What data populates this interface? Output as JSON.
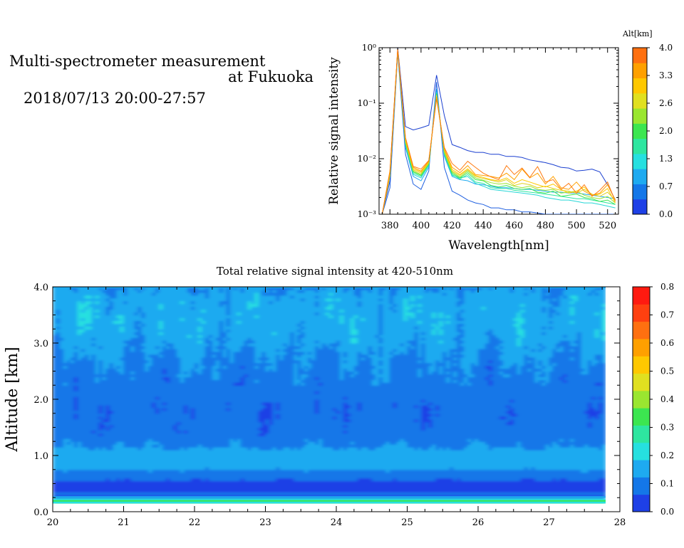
{
  "header": {
    "title_line1": "Multi-spectrometer measurement",
    "title_line2": "at Fukuoka",
    "date_range": "2018/07/13 20:00-27:57"
  },
  "chart_data": [
    {
      "type": "line",
      "xlabel": "Wavelength[nm]",
      "ylabel": "Relative signal intensity",
      "xlim": [
        373,
        527
      ],
      "ylim": [
        0.001,
        1
      ],
      "yscale": "log",
      "x_ticks": [
        "380",
        "400",
        "420",
        "440",
        "460",
        "480",
        "500",
        "520"
      ],
      "y_ticks": [
        "10⁻³",
        "10⁻²",
        "10⁻¹",
        "10⁰"
      ],
      "x": [
        375,
        380,
        385,
        390,
        395,
        400,
        405,
        410,
        415,
        420,
        425,
        430,
        435,
        440,
        445,
        450,
        455,
        460,
        465,
        470,
        475,
        480,
        485,
        490,
        495,
        500,
        505,
        510,
        515,
        520,
        525
      ],
      "colorbar": {
        "label": "Alt[km]",
        "ticks": [
          "0.0",
          "0.7",
          "1.3",
          "2.0",
          "2.6",
          "3.3",
          "4.0"
        ],
        "colors": [
          "#1e40e6",
          "#1477e8",
          "#1eaaf0",
          "#26e0e0",
          "#2ee6a0",
          "#3ce650",
          "#9ae630",
          "#e0e020",
          "#ffc800",
          "#ffa000",
          "#ff7010"
        ]
      },
      "series": [
        {
          "color": "#1a3fd0",
          "values": [
            0.001,
            0.004,
            1.0,
            0.038,
            0.033,
            0.036,
            0.04,
            0.32,
            0.06,
            0.018,
            0.016,
            0.014,
            0.013,
            0.013,
            0.012,
            0.012,
            0.011,
            0.011,
            0.0105,
            0.0095,
            0.009,
            0.0085,
            0.0078,
            0.007,
            0.0068,
            0.006,
            0.0062,
            0.0065,
            0.0058,
            0.0034,
            0.0018
          ]
        },
        {
          "color": "#1e5fe0",
          "values": [
            0.001,
            0.003,
            0.8,
            0.012,
            0.0035,
            0.0028,
            0.006,
            0.24,
            0.007,
            0.0026,
            0.0022,
            0.0018,
            0.0016,
            0.0015,
            0.0013,
            0.0013,
            0.0012,
            0.0012,
            0.0011,
            0.0011,
            0.00105,
            0.001,
            0.001,
            0.001,
            0.001,
            0.001,
            0.001,
            0.001,
            0.001,
            0.001,
            0.001
          ]
        },
        {
          "color": "#1eaaf0",
          "values": [
            0.001,
            0.005,
            0.85,
            0.016,
            0.0048,
            0.004,
            0.007,
            0.18,
            0.011,
            0.0048,
            0.0042,
            0.004,
            0.0035,
            0.0034,
            0.0032,
            0.003,
            0.003,
            0.0029,
            0.0028,
            0.0028,
            0.0027,
            0.0026,
            0.0025,
            0.0025,
            0.0024,
            0.0024,
            0.0023,
            0.0022,
            0.0021,
            0.002,
            0.0019
          ]
        },
        {
          "color": "#26d6d6",
          "values": [
            0.001,
            0.005,
            0.88,
            0.018,
            0.0052,
            0.0045,
            0.0075,
            0.16,
            0.012,
            0.005,
            0.0045,
            0.0048,
            0.0036,
            0.0032,
            0.0028,
            0.0027,
            0.0026,
            0.0025,
            0.0024,
            0.0023,
            0.0022,
            0.002,
            0.0019,
            0.0018,
            0.0018,
            0.0017,
            0.0016,
            0.0016,
            0.0015,
            0.0014,
            0.0013
          ]
        },
        {
          "color": "#2ee6a0",
          "values": [
            0.001,
            0.005,
            0.9,
            0.018,
            0.0055,
            0.0048,
            0.0078,
            0.15,
            0.012,
            0.0052,
            0.0043,
            0.0052,
            0.0038,
            0.0036,
            0.003,
            0.0029,
            0.0029,
            0.0027,
            0.0026,
            0.0025,
            0.0024,
            0.0023,
            0.0022,
            0.0021,
            0.002,
            0.0019,
            0.0019,
            0.0018,
            0.0017,
            0.0016,
            0.0015
          ]
        },
        {
          "color": "#3ce650",
          "values": [
            0.001,
            0.005,
            0.9,
            0.019,
            0.0058,
            0.005,
            0.008,
            0.15,
            0.013,
            0.0055,
            0.0045,
            0.0056,
            0.0042,
            0.004,
            0.0033,
            0.0031,
            0.0033,
            0.0029,
            0.0028,
            0.0029,
            0.0025,
            0.0024,
            0.0026,
            0.0021,
            0.0022,
            0.0023,
            0.002,
            0.0019,
            0.0017,
            0.0018,
            0.0015
          ]
        },
        {
          "color": "#9ae630",
          "values": [
            0.001,
            0.005,
            0.92,
            0.02,
            0.006,
            0.0052,
            0.0082,
            0.14,
            0.013,
            0.0058,
            0.0047,
            0.006,
            0.0045,
            0.0041,
            0.0037,
            0.0035,
            0.0036,
            0.0032,
            0.003,
            0.0032,
            0.0028,
            0.0027,
            0.0028,
            0.0024,
            0.0025,
            0.0026,
            0.0022,
            0.002,
            0.0019,
            0.0021,
            0.0016
          ]
        },
        {
          "color": "#e0d020",
          "values": [
            0.001,
            0.005,
            0.92,
            0.021,
            0.0063,
            0.0055,
            0.0085,
            0.14,
            0.014,
            0.006,
            0.005,
            0.0063,
            0.0048,
            0.0044,
            0.0041,
            0.0038,
            0.0042,
            0.0033,
            0.0036,
            0.0034,
            0.003,
            0.0032,
            0.0029,
            0.0027,
            0.0026,
            0.0024,
            0.0028,
            0.0023,
            0.0021,
            0.0025,
            0.0018
          ]
        },
        {
          "color": "#ffc800",
          "values": [
            0.001,
            0.006,
            0.93,
            0.022,
            0.0066,
            0.0058,
            0.0088,
            0.13,
            0.015,
            0.0064,
            0.0052,
            0.0066,
            0.005,
            0.0046,
            0.0042,
            0.004,
            0.0045,
            0.0036,
            0.0042,
            0.0038,
            0.0034,
            0.0031,
            0.0035,
            0.0028,
            0.0024,
            0.0026,
            0.0031,
            0.0022,
            0.0023,
            0.0029,
            0.0016
          ]
        },
        {
          "color": "#ffa000",
          "values": [
            0.001,
            0.006,
            0.93,
            0.023,
            0.007,
            0.006,
            0.009,
            0.13,
            0.015,
            0.007,
            0.0056,
            0.0075,
            0.0052,
            0.005,
            0.0048,
            0.0045,
            0.0055,
            0.0042,
            0.0065,
            0.0045,
            0.0055,
            0.0035,
            0.0048,
            0.003,
            0.0028,
            0.0038,
            0.0026,
            0.0022,
            0.0024,
            0.0034,
            0.0018
          ]
        },
        {
          "color": "#ff7a10",
          "values": [
            0.001,
            0.006,
            0.95,
            0.024,
            0.0073,
            0.0065,
            0.0093,
            0.12,
            0.016,
            0.0082,
            0.0062,
            0.009,
            0.007,
            0.0055,
            0.0047,
            0.0042,
            0.0075,
            0.0052,
            0.0068,
            0.0046,
            0.0072,
            0.0038,
            0.0042,
            0.0028,
            0.0036,
            0.0024,
            0.0034,
            0.0021,
            0.0027,
            0.0038,
            0.0017
          ]
        }
      ]
    },
    {
      "type": "heatmap",
      "title": "Total relative signal intensity at 420-510nm",
      "ylabel": "Altitude [km]",
      "xlim": [
        20,
        28
      ],
      "ylim": [
        0,
        4
      ],
      "data_extent_x": [
        20,
        27.8
      ],
      "data_extent_y": [
        0.15,
        4.0
      ],
      "x_ticks": [
        "20",
        "21",
        "22",
        "23",
        "24",
        "25",
        "26",
        "27",
        "28"
      ],
      "y_ticks": [
        "0.0",
        "1.0",
        "2.0",
        "3.0",
        "4.0"
      ],
      "color_range": [
        0,
        0.8
      ],
      "altitude_profile": [
        {
          "alt": 0.15,
          "v": 0.3
        },
        {
          "alt": 0.22,
          "v": 0.25
        },
        {
          "alt": 0.27,
          "v": 0.03
        },
        {
          "alt": 0.3,
          "v": 0.14
        },
        {
          "alt": 0.36,
          "v": 0.05
        },
        {
          "alt": 0.5,
          "v": 0.04
        },
        {
          "alt": 0.65,
          "v": 0.09
        },
        {
          "alt": 0.8,
          "v": 0.14
        },
        {
          "alt": 0.95,
          "v": 0.17
        },
        {
          "alt": 1.1,
          "v": 0.13
        },
        {
          "alt": 1.4,
          "v": 0.085
        },
        {
          "alt": 1.8,
          "v": 0.075
        },
        {
          "alt": 2.2,
          "v": 0.09
        },
        {
          "alt": 2.6,
          "v": 0.11
        },
        {
          "alt": 3.0,
          "v": 0.14
        },
        {
          "alt": 3.4,
          "v": 0.16
        },
        {
          "alt": 3.8,
          "v": 0.15
        },
        {
          "alt": 4.0,
          "v": 0.12
        }
      ],
      "colorbar": {
        "ticks": [
          "0.0",
          "0.1",
          "0.2",
          "0.3",
          "0.4",
          "0.5",
          "0.6",
          "0.7",
          "0.8"
        ],
        "colors": [
          "#1e40e6",
          "#1477e8",
          "#1eaaf0",
          "#26e0e0",
          "#2ee6a0",
          "#3ce650",
          "#9ae630",
          "#e0e020",
          "#ffc800",
          "#ffa000",
          "#ff7010",
          "#ff4010",
          "#ff1a10"
        ]
      }
    }
  ]
}
